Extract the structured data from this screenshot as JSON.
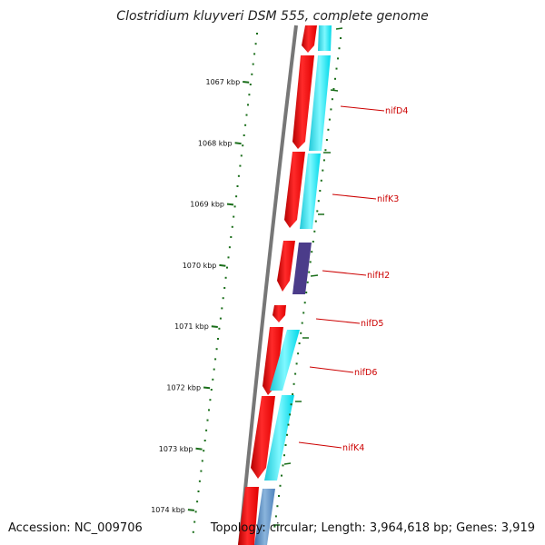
{
  "title": "Clostridium kluyveri DSM 555, complete genome",
  "footer": {
    "accession": "Accession: NC_009706",
    "summary": "Topology: circular; Length: 3,964,618 bp; Genes: 3,919"
  },
  "ticks": [
    {
      "label": "1067 kbp"
    },
    {
      "label": "1068 kbp"
    },
    {
      "label": "1069 kbp"
    },
    {
      "label": "1070 kbp"
    },
    {
      "label": "1071 kbp"
    },
    {
      "label": "1072 kbp"
    },
    {
      "label": "1073 kbp"
    },
    {
      "label": "1074 kbp"
    }
  ],
  "genes": [
    {
      "name": "nifD4"
    },
    {
      "name": "nifK3"
    },
    {
      "name": "nifH2"
    },
    {
      "name": "nifD5"
    },
    {
      "name": "nifD6"
    },
    {
      "name": "nifK4"
    }
  ],
  "colors": {
    "backbone": "#777777",
    "cds": "#ff0000",
    "match_cyan": "#00e5ee",
    "match_purple": "#4b3c8a",
    "match_blue": "#5f8fc0",
    "tick": "#1a6e1a",
    "label": "#cc0000"
  }
}
